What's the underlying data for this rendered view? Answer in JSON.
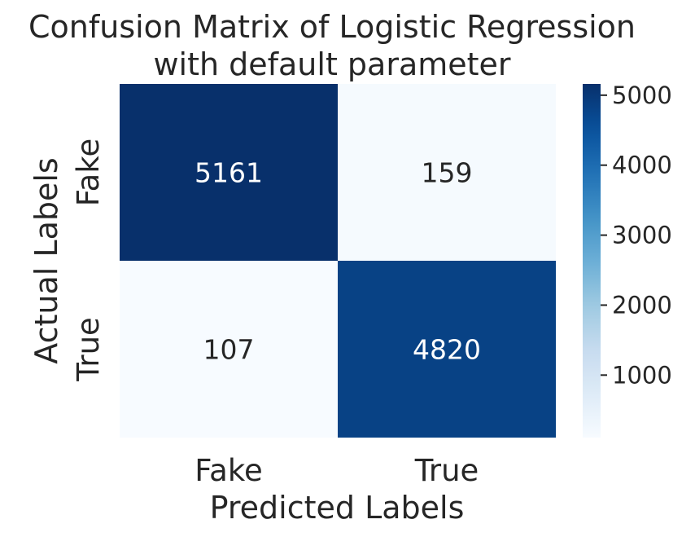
{
  "chart_data": {
    "type": "heatmap",
    "title_lines": [
      "Confusion Matrix of Logistic Regression",
      "with default parameter"
    ],
    "xlabel": "Predicted Labels",
    "ylabel": "Actual Labels",
    "x_categories": [
      "Fake",
      "True"
    ],
    "y_categories": [
      "Fake",
      "True"
    ],
    "values": [
      [
        5161,
        159
      ],
      [
        107,
        4820
      ]
    ],
    "colormap": "Blues",
    "colorbar": {
      "min": 107,
      "max": 5161,
      "ticks": [
        1000,
        2000,
        3000,
        4000,
        5000
      ]
    },
    "colors": {
      "text_dark": "#262626",
      "text_light": "#ffffff"
    }
  }
}
